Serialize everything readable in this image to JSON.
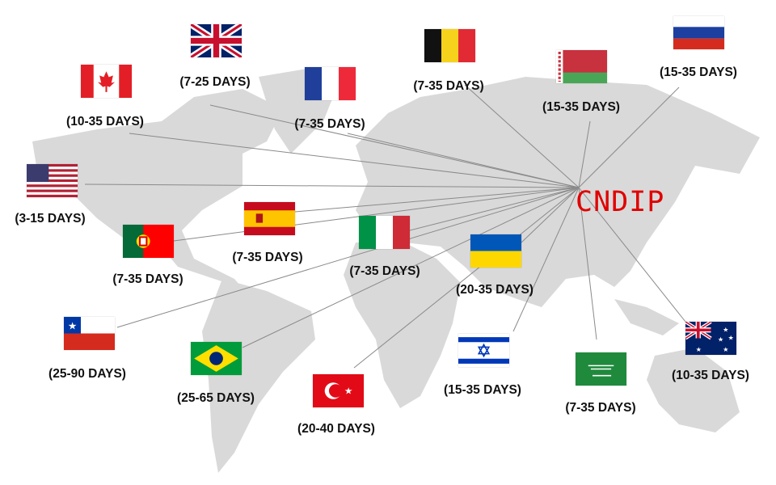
{
  "brand": "CNDIP",
  "colors": {
    "brand": "#e00000",
    "land": "#d8d8d8",
    "lines": "#8a8a8a"
  },
  "destinations": [
    {
      "country": "United Kingdom",
      "flag": "uk-flag",
      "delivery": "(7-25 DAYS)"
    },
    {
      "country": "Canada",
      "flag": "canada-flag",
      "delivery": "(10-35 DAYS)"
    },
    {
      "country": "France",
      "flag": "france-flag",
      "delivery": "(7-35 DAYS)"
    },
    {
      "country": "Belgium",
      "flag": "belgium-flag",
      "delivery": "(7-35 DAYS)"
    },
    {
      "country": "Belarus",
      "flag": "belarus-flag",
      "delivery": "(15-35 DAYS)"
    },
    {
      "country": "Russia",
      "flag": "russia-flag",
      "delivery": "(15-35 DAYS)"
    },
    {
      "country": "United States",
      "flag": "usa-flag",
      "delivery": "(3-15 DAYS)"
    },
    {
      "country": "Spain",
      "flag": "spain-flag",
      "delivery": "(7-35 DAYS)"
    },
    {
      "country": "Portugal",
      "flag": "portugal-flag",
      "delivery": "(7-35 DAYS)"
    },
    {
      "country": "Italy",
      "flag": "italy-flag",
      "delivery": "(7-35 DAYS)"
    },
    {
      "country": "Ukraine",
      "flag": "ukraine-flag",
      "delivery": "(20-35 DAYS)"
    },
    {
      "country": "Chile",
      "flag": "chile-flag",
      "delivery": "(25-90 DAYS)"
    },
    {
      "country": "Brazil",
      "flag": "brazil-flag",
      "delivery": "(25-65 DAYS)"
    },
    {
      "country": "Turkey",
      "flag": "turkey-flag",
      "delivery": "(20-40 DAYS)"
    },
    {
      "country": "Israel",
      "flag": "israel-flag",
      "delivery": "(15-35 DAYS)"
    },
    {
      "country": "Saudi Arabia",
      "flag": "saudi-flag",
      "delivery": "(7-35 DAYS)"
    },
    {
      "country": "Australia",
      "flag": "australia-flag",
      "delivery": "(10-35 DAYS)"
    }
  ]
}
